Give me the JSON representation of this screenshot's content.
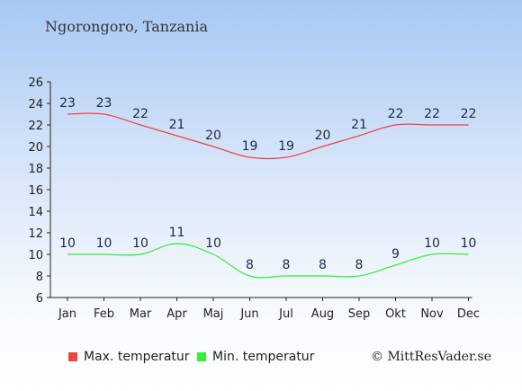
{
  "title": "Ngorongoro, Tanzania",
  "credit": "© MittResVader.se",
  "legend": {
    "max_label": "Max. temperatur",
    "min_label": "Min. temperatur"
  },
  "colors": {
    "max": "#ee4444",
    "min": "#33ee33",
    "label": "#1a2a4a"
  },
  "chart_data": {
    "type": "line",
    "title": "Ngorongoro, Tanzania",
    "categories": [
      "Jan",
      "Feb",
      "Mar",
      "Apr",
      "Maj",
      "Jun",
      "Jul",
      "Aug",
      "Sep",
      "Okt",
      "Nov",
      "Dec"
    ],
    "series": [
      {
        "name": "Max. temperatur",
        "values": [
          23,
          23,
          22,
          21,
          20,
          19,
          19,
          20,
          21,
          22,
          22,
          22
        ]
      },
      {
        "name": "Min. temperatur",
        "values": [
          10,
          10,
          10,
          11,
          10,
          8,
          8,
          8,
          8,
          9,
          10,
          10
        ]
      }
    ],
    "ylim": [
      6,
      26
    ],
    "yticks": [
      6,
      8,
      10,
      12,
      14,
      16,
      18,
      20,
      22,
      24,
      26
    ],
    "grid": false,
    "legend_position": "bottom-left"
  }
}
